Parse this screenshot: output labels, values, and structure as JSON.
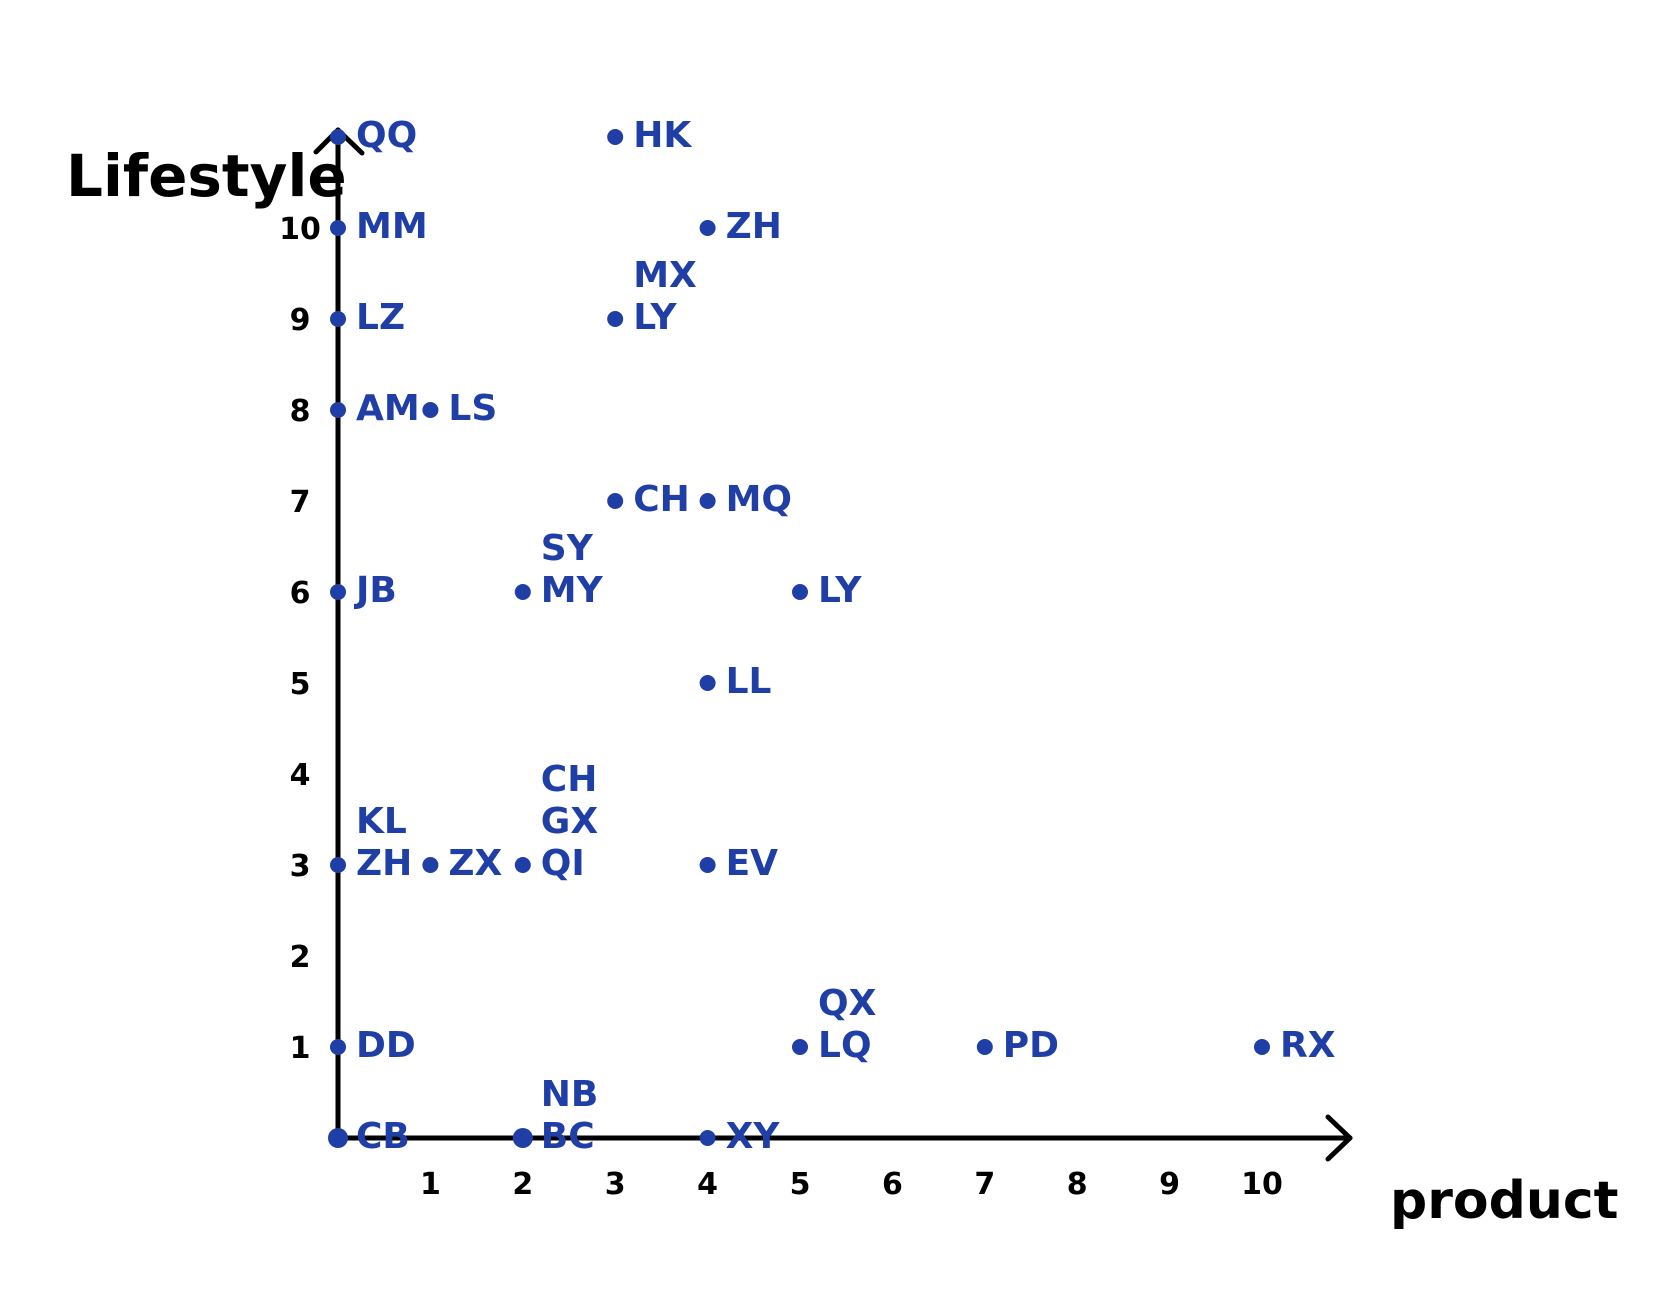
{
  "chart_data": {
    "type": "scatter",
    "xlabel": "product",
    "ylabel": "Lifestyle",
    "xlim": [
      0,
      11
    ],
    "ylim": [
      0,
      11
    ],
    "x_ticks": [
      "1",
      "2",
      "3",
      "4",
      "5",
      "6",
      "7",
      "8",
      "9",
      "10"
    ],
    "y_ticks": [
      "1",
      "2",
      "3",
      "4",
      "5",
      "6",
      "7",
      "8",
      "9",
      "10"
    ],
    "grid": false,
    "legend": "none",
    "color": "#1f3fa6",
    "points": [
      {
        "x": 0,
        "y": 11,
        "labels": [
          "QQ"
        ]
      },
      {
        "x": 3,
        "y": 11,
        "labels": [
          "HK"
        ]
      },
      {
        "x": 0,
        "y": 10,
        "labels": [
          "MM"
        ]
      },
      {
        "x": 4,
        "y": 10,
        "labels": [
          "ZH"
        ]
      },
      {
        "x": 0,
        "y": 9,
        "labels": [
          "LZ"
        ]
      },
      {
        "x": 3,
        "y": 9,
        "labels": [
          "MX",
          "LY"
        ]
      },
      {
        "x": 0,
        "y": 8,
        "labels": [
          "AM"
        ]
      },
      {
        "x": 1,
        "y": 8,
        "labels": [
          "LS"
        ]
      },
      {
        "x": 3,
        "y": 7,
        "labels": [
          "CH"
        ]
      },
      {
        "x": 4,
        "y": 7,
        "labels": [
          "MQ"
        ]
      },
      {
        "x": 0,
        "y": 6,
        "labels": [
          "JB"
        ]
      },
      {
        "x": 2,
        "y": 6,
        "labels": [
          "SY",
          "MY"
        ]
      },
      {
        "x": 5,
        "y": 6,
        "labels": [
          "LY"
        ]
      },
      {
        "x": 4,
        "y": 5,
        "labels": [
          "LL"
        ]
      },
      {
        "x": 0,
        "y": 3,
        "labels": [
          "KL",
          "ZH"
        ]
      },
      {
        "x": 1,
        "y": 3,
        "labels": [
          "ZX"
        ]
      },
      {
        "x": 2,
        "y": 3,
        "labels": [
          "CH",
          "GX",
          "QI"
        ]
      },
      {
        "x": 4,
        "y": 3,
        "labels": [
          "EV"
        ]
      },
      {
        "x": 0,
        "y": 1,
        "labels": [
          "DD"
        ]
      },
      {
        "x": 5,
        "y": 1,
        "labels": [
          "QX",
          "LQ"
        ]
      },
      {
        "x": 7,
        "y": 1,
        "labels": [
          "PD"
        ]
      },
      {
        "x": 10,
        "y": 1,
        "labels": [
          "RX"
        ]
      },
      {
        "x": 0,
        "y": 0,
        "labels": [
          "CB"
        ]
      },
      {
        "x": 2,
        "y": 0,
        "labels": [
          "NB",
          "BC"
        ]
      },
      {
        "x": 4,
        "y": 0,
        "labels": [
          "XY"
        ]
      }
    ]
  }
}
